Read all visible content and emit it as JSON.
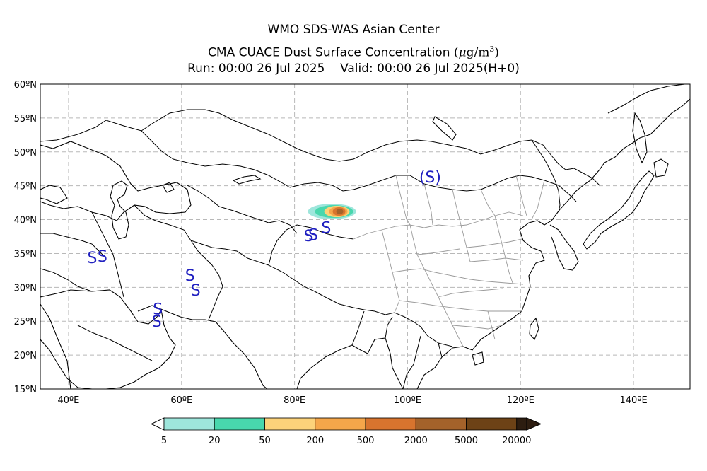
{
  "title": {
    "line1": "WMO SDS-WAS Asian Center",
    "line2_prefix": "CMA CUACE Dust Surface Concentration",
    "line2_unit_mu": "μ",
    "line2_unit_g": "g/m",
    "line2_unit_exp": "3",
    "line3": "Run: 00:00 26 Jul 2025    Valid: 00:00 26 Jul 2025(H+0)"
  },
  "map": {
    "lon_range": [
      35,
      150
    ],
    "lat_range": [
      15,
      60
    ],
    "lat_ticks": [
      {
        "value": 60,
        "label": "60ºN"
      },
      {
        "value": 55,
        "label": "55ºN"
      },
      {
        "value": 50,
        "label": "50ºN"
      },
      {
        "value": 45,
        "label": "45ºN"
      },
      {
        "value": 40,
        "label": "40ºN"
      },
      {
        "value": 35,
        "label": "35ºN"
      },
      {
        "value": 30,
        "label": "30ºN"
      },
      {
        "value": 25,
        "label": "25ºN"
      },
      {
        "value": 20,
        "label": "20ºN"
      },
      {
        "value": 15,
        "label": "15ºN"
      }
    ],
    "lon_ticks": [
      {
        "value": 40,
        "label": "40ºE"
      },
      {
        "value": 60,
        "label": "60ºE"
      },
      {
        "value": 80,
        "label": "80ºE"
      },
      {
        "value": 100,
        "label": "100ºE"
      },
      {
        "value": 120,
        "label": "120ºE"
      },
      {
        "value": 140,
        "label": "140ºE"
      }
    ],
    "grid": true,
    "dust_plume": {
      "center_lon": 87.5,
      "center_lat": 41.2,
      "levels": [
        "5",
        "20",
        "50",
        "200",
        "500",
        "2000"
      ]
    },
    "dust_symbols": [
      {
        "text": "S",
        "lon": 44.2,
        "lat": 33.6
      },
      {
        "text": "S",
        "lon": 46.0,
        "lat": 33.8
      },
      {
        "text": "S",
        "lon": 61.5,
        "lat": 31.0
      },
      {
        "text": "S",
        "lon": 62.5,
        "lat": 28.8
      },
      {
        "text": "S",
        "lon": 55.8,
        "lat": 26.0
      },
      {
        "text": "S",
        "lon": 55.6,
        "lat": 24.2
      },
      {
        "text": "S",
        "lon": 82.5,
        "lat": 36.8
      },
      {
        "text": "S",
        "lon": 83.3,
        "lat": 37.0
      },
      {
        "text": "S",
        "lon": 85.6,
        "lat": 38.0
      },
      {
        "text": "(S)",
        "lon": 104.0,
        "lat": 45.5
      }
    ]
  },
  "colorbar": {
    "colors": [
      "#9ee6dc",
      "#48d7ad",
      "#fcd27a",
      "#f5a64a",
      "#d8742e",
      "#a4622a",
      "#6d4216",
      "#2d1d10"
    ],
    "labels": [
      "5",
      "20",
      "50",
      "200",
      "500",
      "2000",
      "5000",
      "20000"
    ]
  }
}
